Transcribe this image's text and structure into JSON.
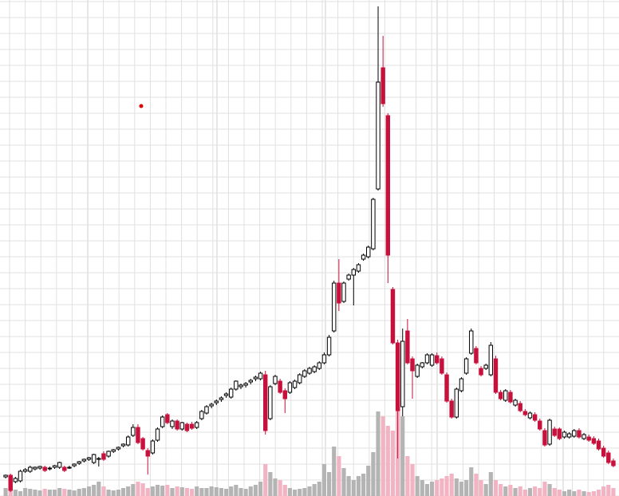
{
  "chart_data": {
    "type": "candlestick",
    "open": [
      24,
      26,
      18,
      19,
      31,
      31,
      34,
      35,
      36,
      34,
      36,
      36,
      36,
      35,
      38,
      41,
      44,
      46,
      42,
      46,
      53,
      50,
      56,
      59,
      63,
      64,
      76,
      86,
      72,
      57,
      54,
      70,
      87,
      102,
      87,
      94,
      84,
      90,
      90,
      86,
      97,
      104,
      113,
      117,
      121,
      126,
      124,
      134,
      137,
      139,
      143,
      147,
      147,
      152,
      97,
      141,
      144,
      132,
      130,
      136,
      142,
      150,
      154,
      156,
      160,
      167,
      177,
      207,
      267,
      244,
      272,
      277,
      282,
      297,
      300,
      310,
      385,
      537,
      477,
      259,
      192,
      112,
      207,
      172,
      150,
      162,
      167,
      164,
      176,
      172,
      152,
      119,
      99,
      132,
      154,
      179,
      185,
      160,
      160,
      152,
      172,
      130,
      120,
      130,
      114,
      116,
      106,
      98,
      102,
      94,
      82,
      65,
      84,
      84,
      74,
      74,
      75,
      82,
      72,
      74,
      72,
      69,
      60,
      54,
      44
    ],
    "high": [
      27,
      28,
      24,
      33,
      35,
      38,
      37,
      38,
      38,
      37,
      39,
      43,
      38,
      38,
      41,
      44,
      47,
      49,
      53,
      49,
      56,
      57,
      59,
      62,
      66,
      76,
      90,
      90,
      74,
      60,
      71,
      86,
      101,
      104,
      96,
      96,
      93,
      92,
      93,
      94,
      108,
      114,
      117,
      121,
      125,
      130,
      136,
      145,
      141,
      143,
      147,
      151,
      156,
      157,
      139,
      152,
      147,
      135,
      144,
      146,
      154,
      159,
      162,
      164,
      169,
      180,
      202,
      270,
      297,
      269,
      279,
      286,
      292,
      304,
      314,
      374,
      614,
      577,
      480,
      262,
      196,
      210,
      222,
      175,
      166,
      168,
      179,
      179,
      180,
      175,
      155,
      122,
      136,
      149,
      174,
      210,
      188,
      163,
      166,
      193,
      176,
      133,
      134,
      133,
      122,
      119,
      109,
      106,
      105,
      97,
      85,
      97,
      87,
      86,
      82,
      80,
      84,
      85,
      79,
      77,
      75,
      72,
      63,
      57,
      47
    ],
    "low": [
      22,
      5,
      16,
      17,
      29,
      29,
      32,
      33,
      30,
      32,
      34,
      34,
      30,
      34,
      36,
      39,
      42,
      44,
      40,
      37,
      44,
      48,
      54,
      57,
      61,
      62,
      74,
      65,
      57,
      27,
      52,
      68,
      85,
      90,
      84,
      82,
      82,
      80,
      83,
      84,
      95,
      102,
      110,
      114,
      118,
      123,
      122,
      132,
      134,
      136,
      140,
      144,
      145,
      77,
      95,
      139,
      128,
      104,
      128,
      134,
      140,
      148,
      152,
      154,
      158,
      165,
      175,
      205,
      232,
      242,
      270,
      239,
      280,
      295,
      298,
      308,
      383,
      488,
      267,
      190,
      47,
      100,
      165,
      122,
      148,
      160,
      165,
      162,
      165,
      152,
      117,
      97,
      97,
      130,
      152,
      177,
      165,
      150,
      158,
      150,
      128,
      120,
      118,
      116,
      112,
      105,
      100,
      96,
      93,
      82,
      62,
      63,
      74,
      70,
      72,
      72,
      73,
      72,
      70,
      68,
      64,
      57,
      48,
      40,
      36
    ],
    "close": [
      26,
      7,
      22,
      31,
      33,
      36,
      36,
      37,
      32,
      35,
      38,
      42,
      32,
      36,
      40,
      43,
      46,
      48,
      52,
      47,
      46,
      56,
      58,
      61,
      65,
      74,
      86,
      67,
      59,
      50,
      69,
      84,
      99,
      92,
      94,
      84,
      92,
      82,
      85,
      92,
      106,
      112,
      115,
      119,
      123,
      128,
      134,
      144,
      139,
      141,
      145,
      149,
      154,
      82,
      137,
      150,
      130,
      122,
      142,
      144,
      152,
      157,
      160,
      162,
      167,
      177,
      199,
      267,
      242,
      267,
      277,
      284,
      290,
      302,
      312,
      372,
      519,
      492,
      302,
      192,
      107,
      194,
      167,
      157,
      164,
      167,
      177,
      177,
      167,
      154,
      119,
      99,
      134,
      147,
      172,
      207,
      167,
      152,
      164,
      189,
      130,
      122,
      132,
      118,
      120,
      107,
      102,
      104,
      95,
      84,
      64,
      95,
      76,
      72,
      80,
      78,
      82,
      74,
      77,
      70,
      66,
      59,
      50,
      42,
      38
    ],
    "volume": [
      10,
      18,
      8,
      6,
      10,
      9,
      8,
      7,
      9,
      8,
      8,
      10,
      9,
      8,
      7,
      9,
      10,
      12,
      14,
      18,
      12,
      8,
      7,
      8,
      10,
      12,
      15,
      18,
      16,
      10,
      12,
      14,
      13,
      14,
      10,
      12,
      11,
      10,
      9,
      12,
      10,
      10,
      12,
      11,
      10,
      9,
      12,
      14,
      10,
      9,
      12,
      14,
      18,
      40,
      30,
      22,
      20,
      14,
      10,
      8,
      9,
      10,
      12,
      15,
      18,
      40,
      30,
      62,
      50,
      35,
      25,
      20,
      25,
      28,
      38,
      55,
      106,
      100,
      88,
      82,
      108,
      100,
      50,
      40,
      25,
      20,
      15,
      18,
      20,
      22,
      25,
      28,
      22,
      18,
      20,
      36,
      28,
      20,
      15,
      30,
      20,
      15,
      12,
      14,
      10,
      12,
      8,
      10,
      12,
      10,
      18,
      15,
      10,
      8,
      6,
      8,
      6,
      8,
      6,
      5,
      6,
      8,
      12,
      14,
      10
    ],
    "ylim": [
      0,
      622
    ],
    "y2lim": [
      0,
      622
    ],
    "yticks": [
      0,
      20,
      40,
      60,
      80,
      100,
      120,
      140,
      160,
      180,
      200,
      220,
      240,
      260,
      280,
      300,
      320,
      340,
      360,
      380,
      400,
      420,
      440,
      460,
      480,
      500,
      520,
      540,
      560,
      580,
      600,
      620
    ],
    "grid": true,
    "up_color": "#000000",
    "down_color": "#c8103c",
    "volume_up_color": "#b4b4b4",
    "volume_down_color": "#f2b3c2"
  }
}
